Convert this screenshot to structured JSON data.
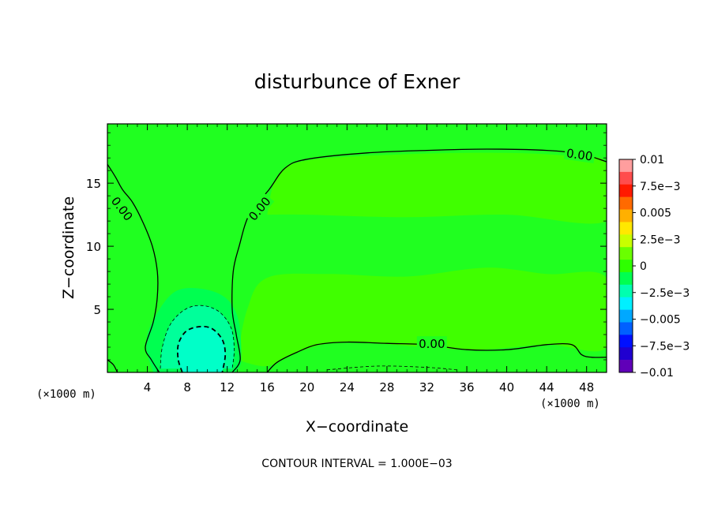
{
  "chart_data": {
    "type": "heatmap",
    "title": "disturbunce of Exner",
    "xlabel": "X−coordinate",
    "ylabel": "Z−coordinate",
    "x_unit": "(×1000 m)",
    "x_unit_right": "(×1000 m)",
    "xlim": [
      0,
      50
    ],
    "ylim": [
      0,
      19.7
    ],
    "x_ticks": [
      4,
      8,
      12,
      16,
      20,
      24,
      28,
      32,
      36,
      40,
      44,
      48
    ],
    "y_ticks": [
      5,
      10,
      15
    ],
    "footer": "CONTOUR INTERVAL = 1.000E−03",
    "colorbar": {
      "labels": [
        "0.01",
        "7.5e−3",
        "0.005",
        "2.5e−3",
        "0",
        "−2.5e−3",
        "−0.005",
        "−7.5e−3",
        "−0.01"
      ],
      "range": [
        -0.01,
        0.01
      ],
      "colors": [
        "#ff9e9e",
        "#ff4d4d",
        "#ff1a00",
        "#ff6a00",
        "#ffb000",
        "#ffe800",
        "#c8ff00",
        "#6aff00",
        "#2eff00",
        "#00ff50",
        "#00ffb0",
        "#00f0ff",
        "#00a8ff",
        "#0060ff",
        "#0010ff",
        "#2000d0",
        "#6000b8"
      ]
    },
    "contour_labels": [
      {
        "text": "0.00",
        "x": 1.5,
        "z": 13
      },
      {
        "text": "0.00",
        "x": 15.2,
        "z": 13
      },
      {
        "text": "0.00",
        "x": 47.3,
        "z": 17.3
      },
      {
        "text": "0.00",
        "x": 32.5,
        "z": 2.3
      }
    ],
    "contours": [
      {
        "level": 0,
        "dash": false,
        "points": [
          [
            0,
            16.5
          ],
          [
            0.8,
            15.5
          ],
          [
            1.5,
            14.5
          ],
          [
            2.5,
            13.5
          ],
          [
            3.5,
            12
          ],
          [
            4.5,
            10
          ],
          [
            5,
            8
          ],
          [
            5,
            6
          ],
          [
            4.6,
            4
          ],
          [
            3.8,
            2
          ],
          [
            4.4,
            1
          ],
          [
            5.2,
            0
          ]
        ]
      },
      {
        "level": 0,
        "dash": false,
        "points": [
          [
            12.5,
            0
          ],
          [
            13.3,
            1
          ],
          [
            12.9,
            3
          ],
          [
            12.5,
            5
          ],
          [
            12.6,
            8
          ],
          [
            13.2,
            10
          ],
          [
            14.2,
            12.5
          ],
          [
            16.2,
            14.5
          ],
          [
            17.8,
            16.2
          ],
          [
            20,
            16.9
          ],
          [
            26,
            17.4
          ],
          [
            32,
            17.6
          ],
          [
            38,
            17.7
          ],
          [
            44,
            17.6
          ],
          [
            47.5,
            17.3
          ],
          [
            50,
            16.7
          ]
        ]
      },
      {
        "level": 0,
        "dash": false,
        "points": [
          [
            16,
            0
          ],
          [
            17,
            0.8
          ],
          [
            19,
            1.6
          ],
          [
            21,
            2.2
          ],
          [
            24,
            2.4
          ],
          [
            28,
            2.3
          ],
          [
            32,
            2.2
          ],
          [
            36,
            1.8
          ],
          [
            40,
            1.8
          ],
          [
            44,
            2.2
          ],
          [
            46.5,
            2.2
          ],
          [
            47.5,
            1.4
          ],
          [
            48.5,
            1.2
          ],
          [
            50,
            1.2
          ]
        ]
      },
      {
        "level": 0,
        "dash": false,
        "points": [
          [
            0,
            1
          ],
          [
            0.6,
            0.6
          ],
          [
            1,
            0
          ]
        ]
      },
      {
        "level": -0.001,
        "dash": true,
        "points": [
          [
            5.3,
            0.3
          ],
          [
            5.5,
            2
          ],
          [
            6.3,
            3.8
          ],
          [
            7.8,
            5
          ],
          [
            9.5,
            5.3
          ],
          [
            11.2,
            4.8
          ],
          [
            12.4,
            3.5
          ],
          [
            12.7,
            1.8
          ],
          [
            12.5,
            0.3
          ]
        ]
      },
      {
        "level": -0.002,
        "dash": true,
        "points": [
          [
            7.5,
            0
          ],
          [
            7.1,
            1
          ],
          [
            7.1,
            2.2
          ],
          [
            7.8,
            3.2
          ],
          [
            9,
            3.6
          ],
          [
            10.4,
            3.5
          ],
          [
            11.5,
            2.6
          ],
          [
            11.8,
            1.4
          ],
          [
            11.5,
            0
          ]
        ]
      },
      {
        "level": -0.001,
        "dash": true,
        "points": [
          [
            22,
            0.2
          ],
          [
            27,
            0.5
          ],
          [
            32,
            0.4
          ],
          [
            35,
            0.2
          ]
        ]
      }
    ],
    "fill_regions": [
      {
        "value": 0.0006,
        "color": "#40ff00",
        "points": [
          [
            13,
            1
          ],
          [
            14,
            5
          ],
          [
            16,
            7.5
          ],
          [
            22,
            7.8
          ],
          [
            30,
            7.6
          ],
          [
            38,
            8.3
          ],
          [
            44,
            7.8
          ],
          [
            50,
            7.5
          ],
          [
            50,
            2
          ],
          [
            44,
            2.2
          ],
          [
            36,
            1.8
          ],
          [
            24,
            2.4
          ],
          [
            19,
            1.6
          ],
          [
            16,
            0.5
          ],
          [
            13,
            1
          ]
        ]
      },
      {
        "value": 0.0004,
        "color": "#40ff00",
        "points": [
          [
            16,
            12.5
          ],
          [
            17,
            15.5
          ],
          [
            20,
            16.8
          ],
          [
            30,
            17.3
          ],
          [
            40,
            17.4
          ],
          [
            47,
            17.1
          ],
          [
            50,
            16.5
          ],
          [
            50,
            12
          ],
          [
            40,
            12.5
          ],
          [
            30,
            12.3
          ],
          [
            20,
            12.5
          ],
          [
            16,
            12.5
          ]
        ]
      },
      {
        "value": -0.0006,
        "color": "#00ff50",
        "points": [
          [
            4.6,
            0
          ],
          [
            3.9,
            2
          ],
          [
            4.5,
            4
          ],
          [
            7,
            6.5
          ],
          [
            11,
            6.3
          ],
          [
            13,
            4.5
          ],
          [
            13.4,
            1
          ],
          [
            12.8,
            0
          ]
        ]
      },
      {
        "value": -0.0014,
        "color": "#00ff9a",
        "points": [
          [
            5.3,
            0.3
          ],
          [
            5.5,
            2
          ],
          [
            6.3,
            3.8
          ],
          [
            7.8,
            5
          ],
          [
            9.5,
            5.3
          ],
          [
            11.2,
            4.8
          ],
          [
            12.4,
            3.5
          ],
          [
            12.7,
            1.8
          ],
          [
            12.5,
            0.3
          ]
        ]
      },
      {
        "value": -0.0023,
        "color": "#00ffc8",
        "points": [
          [
            7.5,
            0
          ],
          [
            7.1,
            1
          ],
          [
            7.1,
            2.2
          ],
          [
            7.8,
            3.2
          ],
          [
            9,
            3.6
          ],
          [
            10.4,
            3.5
          ],
          [
            11.5,
            2.6
          ],
          [
            11.8,
            1.4
          ],
          [
            11.5,
            0
          ]
        ]
      },
      {
        "value": -0.0005,
        "color": "#20ff20",
        "points": [
          [
            0,
            0
          ],
          [
            0,
            4
          ],
          [
            1,
            5.5
          ],
          [
            2.5,
            5
          ],
          [
            3.4,
            3
          ],
          [
            3.2,
            1
          ],
          [
            2.5,
            0
          ]
        ]
      }
    ]
  }
}
